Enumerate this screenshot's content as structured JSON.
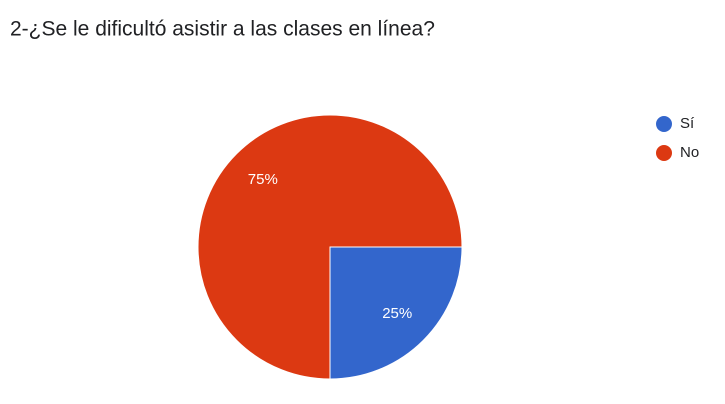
{
  "chart_data": {
    "type": "pie",
    "title": "2-¿Se le dificultó asistir a las clases en línea?",
    "categories": [
      "Sí",
      "No"
    ],
    "values": [
      25,
      75
    ],
    "value_labels": [
      "25%",
      "75%"
    ],
    "colors": [
      "#3366cc",
      "#dc3912"
    ],
    "legend": "right"
  }
}
